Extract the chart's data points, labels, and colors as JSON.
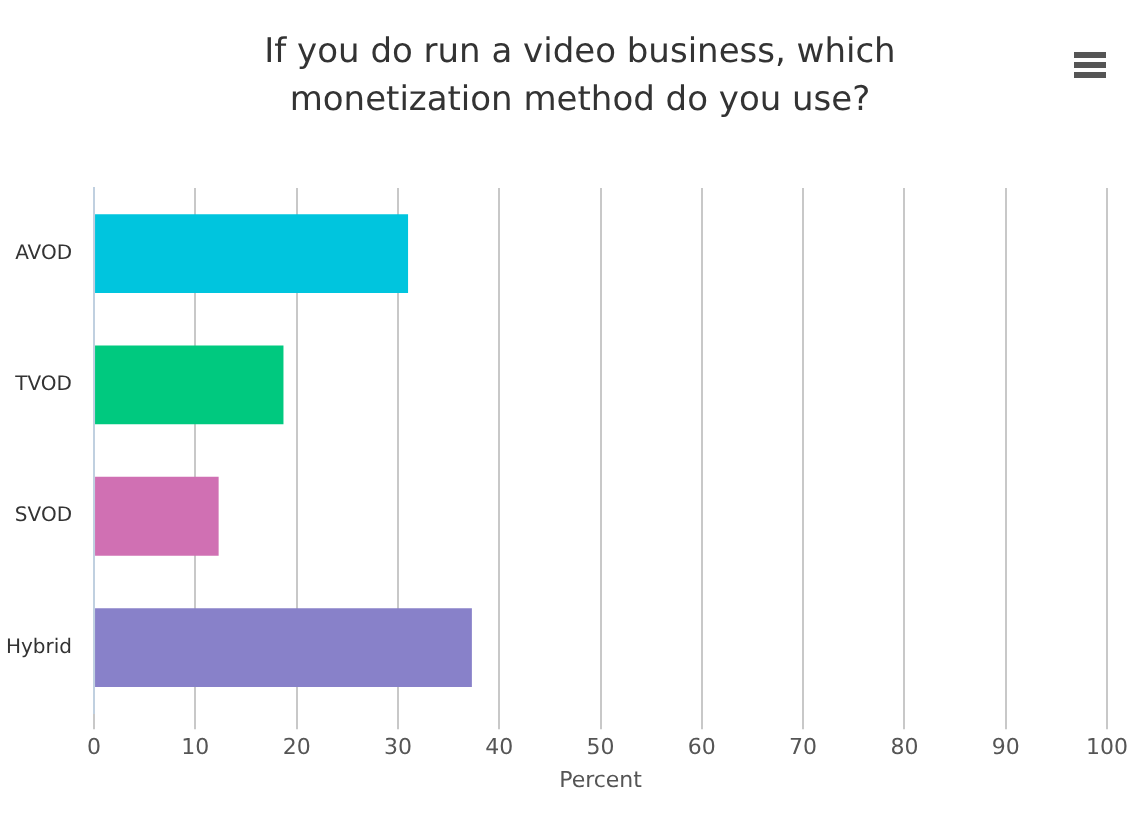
{
  "chart_data": {
    "type": "bar",
    "orientation": "horizontal",
    "title": "If you do run a video business, which monetization method do you use?",
    "categories": [
      "AVOD",
      "TVOD",
      "SVOD",
      "Hybrid"
    ],
    "values": [
      31,
      18.7,
      12.3,
      37.3
    ],
    "colors": [
      "#00c5de",
      "#00c97f",
      "#d070b3",
      "#8881c9"
    ],
    "xlabel": "Percent",
    "xlim": [
      0,
      100
    ],
    "xticks": [
      0,
      10,
      20,
      30,
      40,
      50,
      60,
      70,
      80,
      90,
      100
    ],
    "grid": "x",
    "legend": false
  }
}
